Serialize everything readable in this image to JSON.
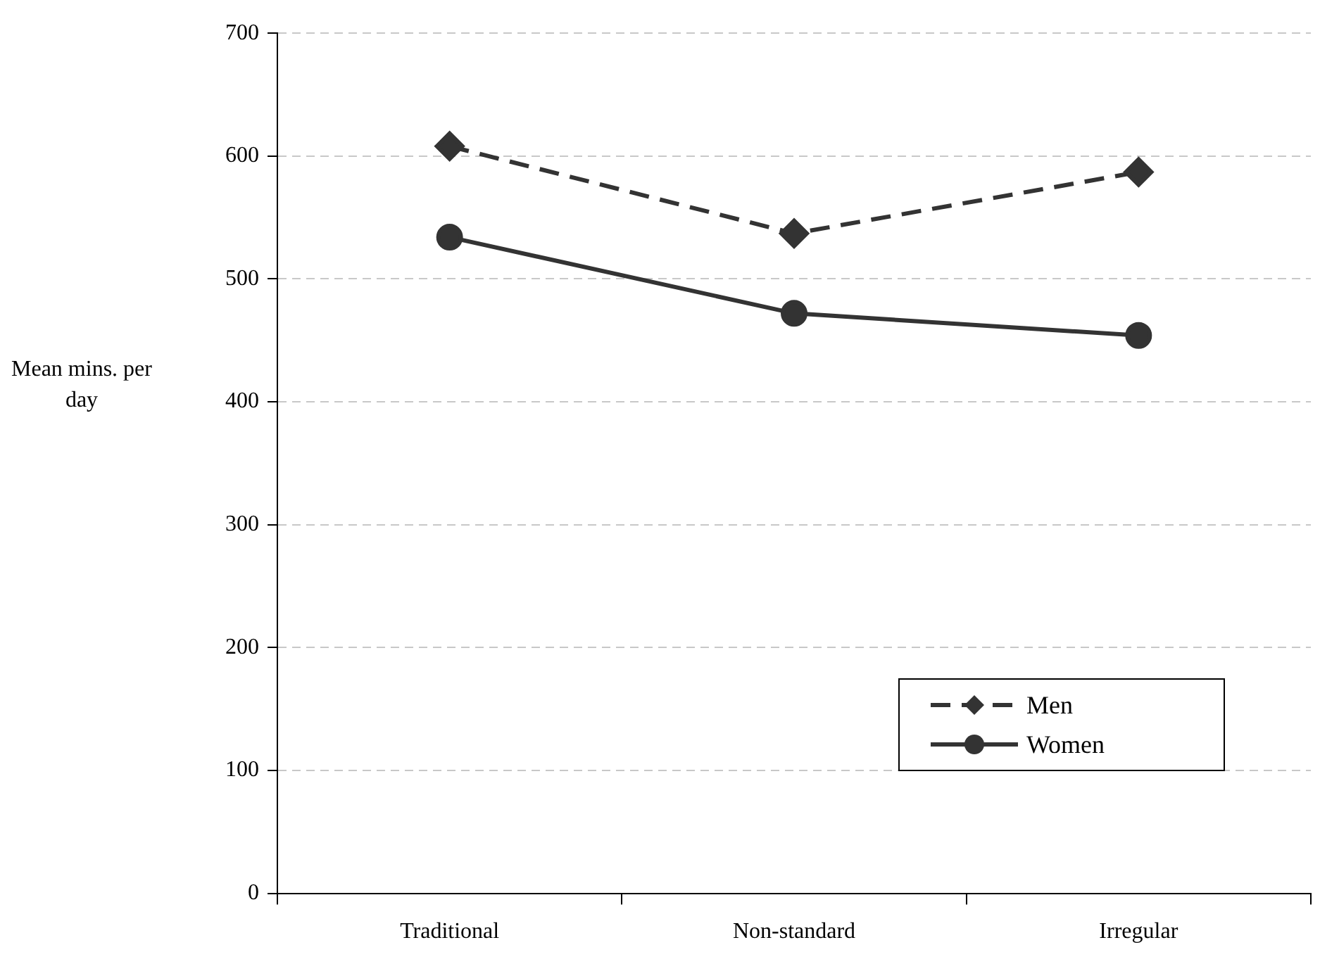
{
  "chart_data": {
    "type": "line",
    "ylabel": "Mean mins. per day",
    "categories": [
      "Traditional",
      "Non-standard",
      "Irregular"
    ],
    "series": [
      {
        "name": "Men",
        "color": "#333333",
        "values": [
          608,
          537,
          587
        ],
        "marker": "diamond",
        "line_style": "dashed"
      },
      {
        "name": "Women",
        "color": "#333333",
        "values": [
          534,
          472,
          454
        ],
        "marker": "circle",
        "line_style": "solid"
      }
    ],
    "ylim": [
      0,
      700
    ],
    "yticks": [
      0,
      100,
      200,
      300,
      400,
      500,
      600,
      700
    ],
    "grid": "y",
    "legend": "bottom right"
  }
}
